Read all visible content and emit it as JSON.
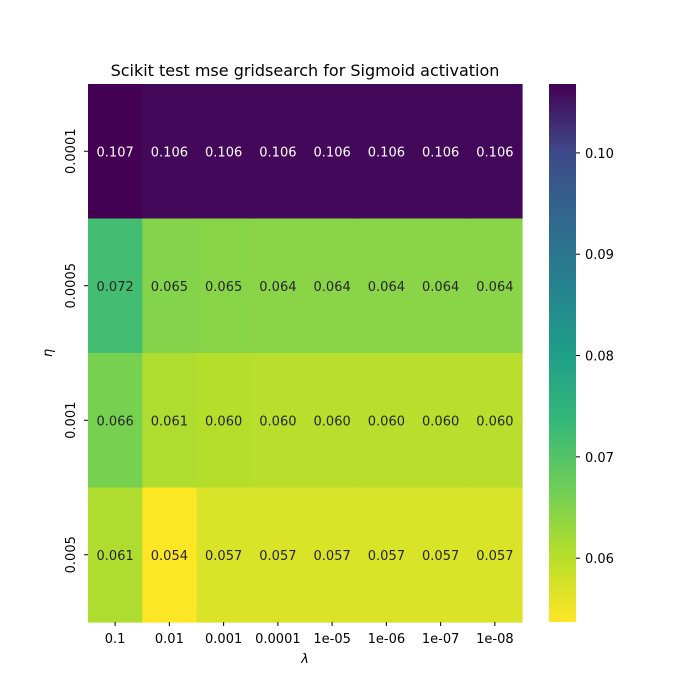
{
  "chart_data": {
    "type": "heatmap",
    "title": "Scikit test mse gridsearch for Sigmoid activation",
    "xlabel": "λ",
    "ylabel": "η",
    "x_categories": [
      "0.1",
      "0.01",
      "0.001",
      "0.0001",
      "1e-05",
      "1e-06",
      "1e-07",
      "1e-08"
    ],
    "y_categories": [
      "0.0001",
      "0.0005",
      "0.001",
      "0.005"
    ],
    "values": [
      [
        0.1068,
        0.1062,
        0.1062,
        0.1062,
        0.1062,
        0.1062,
        0.1062,
        0.1062
      ],
      [
        0.072,
        0.065,
        0.0645,
        0.0644,
        0.0644,
        0.0644,
        0.0644,
        0.0644
      ],
      [
        0.066,
        0.061,
        0.0603,
        0.06,
        0.06,
        0.06,
        0.06,
        0.06
      ],
      [
        0.061,
        0.0537,
        0.057,
        0.057,
        0.057,
        0.057,
        0.057,
        0.057
      ]
    ],
    "annotations": [
      [
        "0.107",
        "0.106",
        "0.106",
        "0.106",
        "0.106",
        "0.106",
        "0.106",
        "0.106"
      ],
      [
        "0.072",
        "0.065",
        "0.065",
        "0.064",
        "0.064",
        "0.064",
        "0.064",
        "0.064"
      ],
      [
        "0.066",
        "0.061",
        "0.060",
        "0.060",
        "0.060",
        "0.060",
        "0.060",
        "0.060"
      ],
      [
        "0.061",
        "0.054",
        "0.057",
        "0.057",
        "0.057",
        "0.057",
        "0.057",
        "0.057"
      ]
    ],
    "colormap": "viridis_r",
    "colorbar": {
      "vmin": 0.0537,
      "vmax": 0.1068,
      "ticks": [
        0.06,
        0.07,
        0.08,
        0.09,
        0.1
      ],
      "tick_labels": [
        "0.06",
        "0.07",
        "0.08",
        "0.09",
        "0.10"
      ]
    }
  }
}
